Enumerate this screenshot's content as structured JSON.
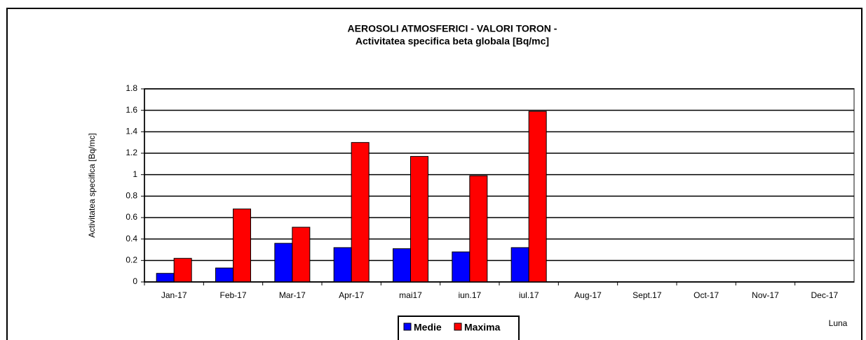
{
  "chart_data": {
    "type": "bar",
    "title": "AEROSOLI ATMOSFERICI  - VALORI TORON -",
    "subtitle": "Activitatea specifica beta globala [Bq/mc]",
    "y_label": "Activitatea specifica [Bq/mc]",
    "x_label": "Luna",
    "categories": [
      "Jan-17",
      "Feb-17",
      "Mar-17",
      "Apr-17",
      "mai17",
      "iun.17",
      "iul.17",
      "Aug-17",
      "Sept.17",
      "Oct-17",
      "Nov-17",
      "Dec-17"
    ],
    "series": [
      {
        "name": "Medie",
        "color": "#0000ff",
        "values": [
          0.08,
          0.13,
          0.36,
          0.32,
          0.31,
          0.28,
          0.32,
          null,
          null,
          null,
          null,
          null
        ]
      },
      {
        "name": "Maxima",
        "color": "#ff0000",
        "values": [
          0.22,
          0.68,
          0.51,
          1.3,
          1.17,
          0.99,
          1.59,
          null,
          null,
          null,
          null,
          null
        ]
      }
    ],
    "ylim": [
      0,
      1.8
    ],
    "yticks": [
      0,
      0.2,
      0.4,
      0.6,
      0.8,
      1,
      1.2,
      1.4,
      1.6,
      1.8
    ],
    "grid": true,
    "legend": "bottom"
  }
}
